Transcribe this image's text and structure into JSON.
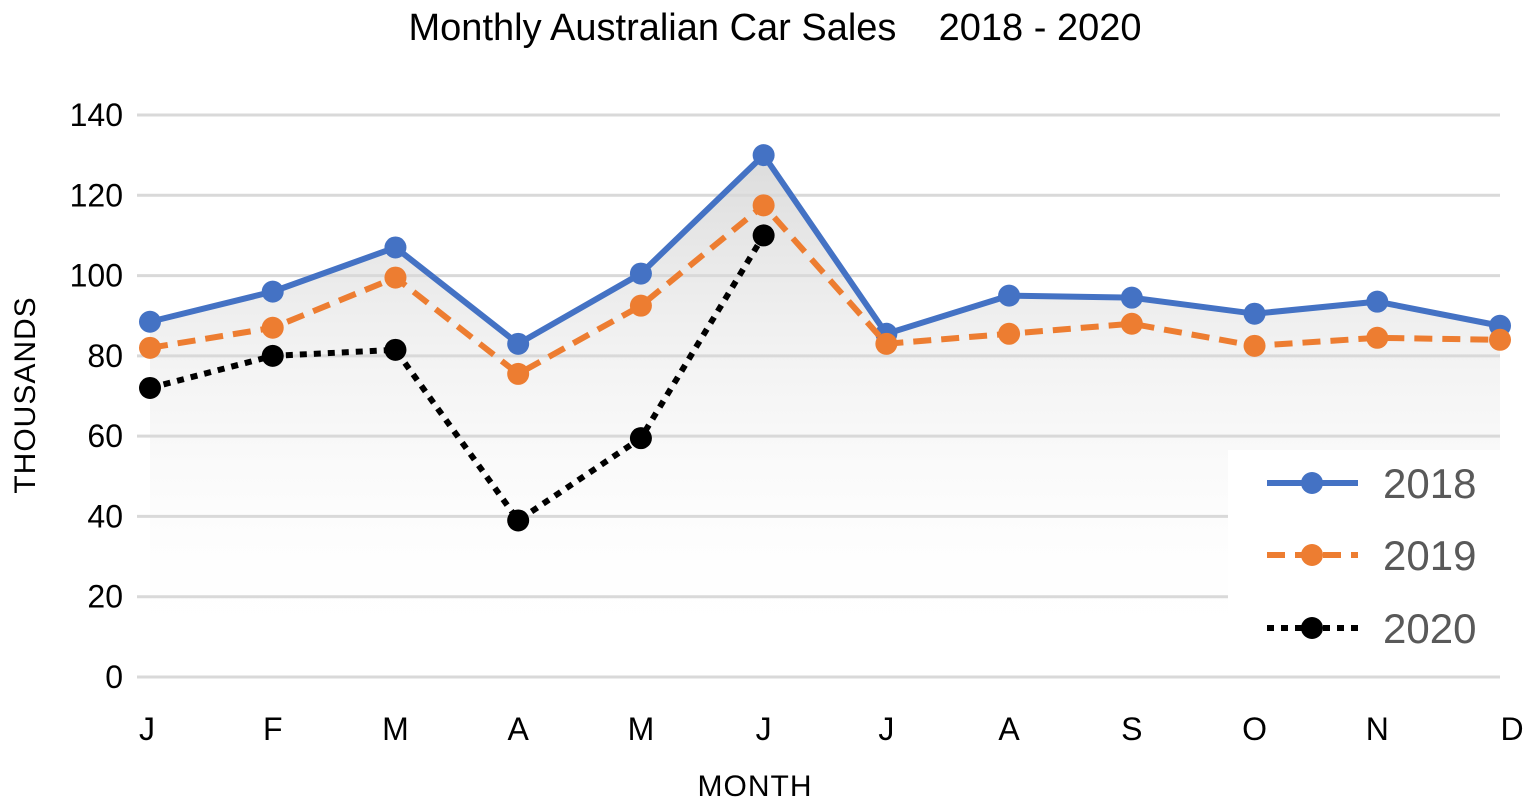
{
  "chart_data": {
    "type": "line",
    "title": "Monthly Australian Car Sales    2018 - 2020",
    "xlabel": "MONTH",
    "ylabel": "THOUSANDS",
    "categories": [
      "J",
      "F",
      "M",
      "A",
      "M",
      "J",
      "J",
      "A",
      "S",
      "O",
      "N",
      "D"
    ],
    "ylim": [
      0,
      140
    ],
    "yticks": [
      0,
      20,
      40,
      60,
      80,
      100,
      120,
      140
    ],
    "grid": true,
    "legend_position": "bottom-right",
    "series": [
      {
        "name": "2018",
        "color": "#4472C4",
        "line_style": "solid",
        "values": [
          88.5,
          96,
          107,
          83,
          100.5,
          130,
          85.5,
          95,
          94.5,
          90.5,
          93.5,
          87.5
        ]
      },
      {
        "name": "2019",
        "color": "#ED7D31",
        "line_style": "dashed",
        "values": [
          82,
          87,
          99.5,
          75.5,
          92.5,
          117.5,
          83,
          85.5,
          88,
          82.5,
          84.5,
          84
        ]
      },
      {
        "name": "2020",
        "color": "#000000",
        "line_style": "dotted",
        "values": [
          72,
          80,
          81.5,
          39,
          59.5,
          110,
          null,
          null,
          null,
          null,
          null,
          null
        ]
      }
    ]
  }
}
